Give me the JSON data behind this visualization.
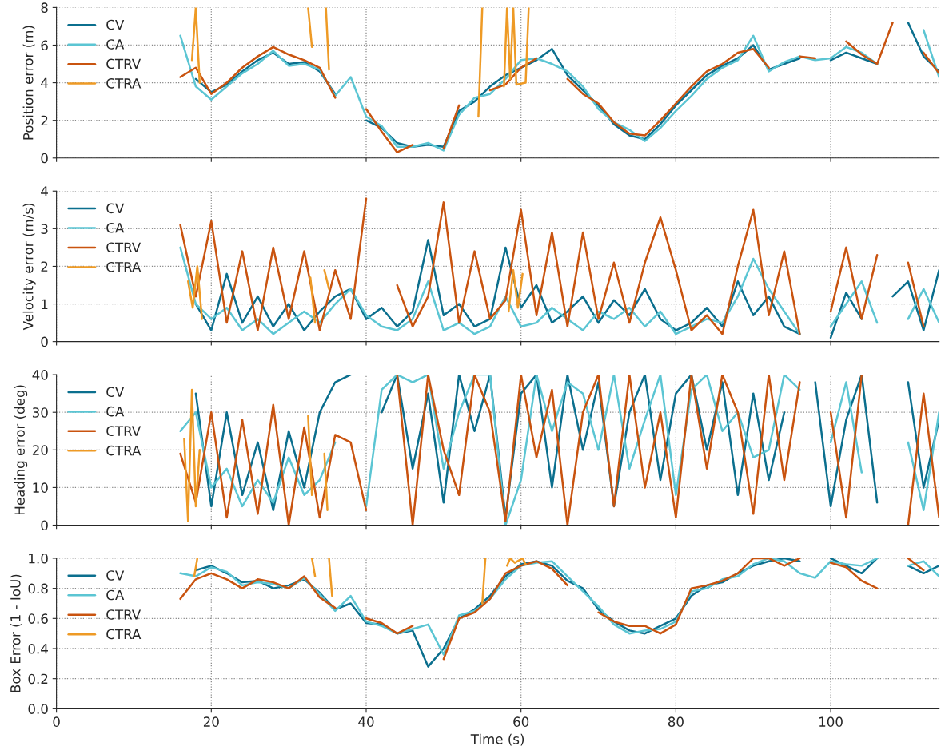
{
  "chart_data": [
    {
      "type": "line",
      "ylabel": "Position error (m)",
      "xlim": [
        0,
        114
      ],
      "xticks": [
        0,
        20,
        40,
        60,
        80,
        100
      ],
      "ylim": [
        0,
        8
      ],
      "yticks": [
        0,
        2,
        4,
        6,
        8
      ],
      "grid": true,
      "legend": "top left",
      "tick_labels": "y",
      "line_style": "solid",
      "x": [
        16,
        18,
        20,
        22,
        24,
        26,
        28,
        30,
        32,
        34,
        36,
        38,
        40,
        42,
        44,
        46,
        48,
        50,
        52,
        54,
        56,
        58,
        60,
        62,
        64,
        66,
        68,
        70,
        72,
        74,
        76,
        78,
        80,
        82,
        84,
        86,
        88,
        90,
        92,
        94,
        96,
        98,
        100,
        102,
        104,
        106,
        108,
        110,
        112,
        114
      ],
      "series": [
        {
          "name": "CV",
          "color": "#0b6f8e",
          "values": [
            null,
            4.2,
            3.5,
            3.9,
            4.6,
            5.2,
            5.6,
            5.0,
            5.1,
            4.6,
            3.4,
            null,
            2.0,
            1.6,
            0.8,
            0.6,
            0.7,
            0.6,
            2.5,
            3.0,
            3.8,
            4.4,
            4.8,
            5.2,
            5.8,
            4.4,
            3.6,
            2.8,
            1.8,
            1.2,
            1.0,
            1.8,
            2.8,
            3.6,
            4.4,
            4.9,
            5.3,
            6.0,
            4.7,
            5.0,
            5.3,
            null,
            5.2,
            5.6,
            5.3,
            5.0,
            null,
            7.2,
            5.4,
            4.6
          ]
        },
        {
          "name": "CA",
          "color": "#5bc5d3",
          "values": [
            6.5,
            3.8,
            3.1,
            3.8,
            4.5,
            5.0,
            5.7,
            4.9,
            5.0,
            4.7,
            3.3,
            4.3,
            2.2,
            1.7,
            0.6,
            0.6,
            0.8,
            0.4,
            2.3,
            3.2,
            3.4,
            4.2,
            5.2,
            5.3,
            5.0,
            4.6,
            3.8,
            2.6,
            1.9,
            1.5,
            0.9,
            1.6,
            2.5,
            3.3,
            4.2,
            4.8,
            5.2,
            6.5,
            4.6,
            5.1,
            5.4,
            5.2,
            5.3,
            5.9,
            5.6,
            5.0,
            null,
            null,
            6.8,
            4.3
          ]
        },
        {
          "name": "CTRV",
          "color": "#c9530f",
          "values": [
            4.3,
            4.8,
            3.4,
            4.0,
            4.8,
            5.4,
            5.9,
            5.5,
            5.2,
            4.8,
            3.2,
            null,
            2.6,
            1.4,
            0.3,
            0.7,
            null,
            0.5,
            2.8,
            null,
            3.6,
            3.9,
            4.8,
            5.3,
            null,
            4.2,
            3.4,
            2.9,
            1.9,
            1.3,
            1.2,
            2.0,
            2.9,
            3.8,
            4.6,
            5.0,
            5.6,
            5.8,
            4.8,
            null,
            5.4,
            5.3,
            null,
            6.2,
            5.5,
            5.0,
            7.2,
            null,
            5.6,
            4.5
          ]
        },
        {
          "name": "CTRA",
          "color": "#ee9a25",
          "x": [
            17.5,
            18,
            18.5,
            19,
            32.5,
            33,
            33.5,
            34.8,
            35.2,
            35.6,
            54.5,
            55,
            55.5,
            57.8,
            58.2,
            58.6,
            59,
            59.4,
            60.6,
            61
          ],
          "values": [
            5.2,
            8,
            4.0,
            null,
            8,
            5.9,
            null,
            8,
            4.7,
            null,
            2.2,
            8,
            null,
            3.8,
            8,
            4.2,
            8,
            3.9,
            4.0,
            8
          ]
        }
      ]
    },
    {
      "type": "line",
      "ylabel": "Velocity error (m/s)",
      "xlim": [
        0,
        114
      ],
      "xticks": [
        0,
        20,
        40,
        60,
        80,
        100
      ],
      "ylim": [
        0,
        4
      ],
      "yticks": [
        0,
        1,
        2,
        3,
        4
      ],
      "grid": true,
      "legend": "top left",
      "tick_labels": "y",
      "line_style": "solid",
      "x": [
        16,
        18,
        20,
        22,
        24,
        26,
        28,
        30,
        32,
        34,
        36,
        38,
        40,
        42,
        44,
        46,
        48,
        50,
        52,
        54,
        56,
        58,
        60,
        62,
        64,
        66,
        68,
        70,
        72,
        74,
        76,
        78,
        80,
        82,
        84,
        86,
        88,
        90,
        92,
        94,
        96,
        98,
        100,
        102,
        104,
        106,
        108,
        110,
        112,
        114
      ],
      "series": [
        {
          "name": "CV",
          "color": "#0b6f8e",
          "values": [
            null,
            1.0,
            0.3,
            1.8,
            0.5,
            1.2,
            0.4,
            1.0,
            0.3,
            0.8,
            1.2,
            1.4,
            0.6,
            0.9,
            0.4,
            0.8,
            2.7,
            0.7,
            1.0,
            0.4,
            0.6,
            2.5,
            0.9,
            1.5,
            0.5,
            0.8,
            1.2,
            0.5,
            1.1,
            0.7,
            1.4,
            0.6,
            0.3,
            0.5,
            0.9,
            0.4,
            1.6,
            0.7,
            1.2,
            0.4,
            0.2,
            null,
            0.1,
            1.3,
            0.6,
            null,
            1.2,
            1.6,
            0.3,
            1.9
          ]
        },
        {
          "name": "CA",
          "color": "#5bc5d3",
          "values": [
            2.5,
            1.0,
            0.6,
            0.9,
            0.3,
            0.6,
            0.2,
            0.5,
            0.8,
            0.5,
            1.0,
            1.4,
            0.7,
            0.4,
            0.3,
            0.6,
            1.6,
            0.3,
            0.5,
            0.2,
            0.4,
            1.2,
            0.4,
            0.5,
            0.9,
            0.6,
            0.3,
            0.8,
            0.6,
            0.9,
            0.4,
            0.8,
            0.2,
            0.4,
            0.6,
            0.5,
            1.2,
            2.2,
            1.4,
            0.8,
            0.2,
            null,
            0.4,
            1.0,
            1.6,
            0.5,
            null,
            0.6,
            1.4,
            0.5
          ]
        },
        {
          "name": "CTRV",
          "color": "#c9530f",
          "values": [
            3.1,
            1.2,
            3.2,
            0.5,
            2.4,
            0.3,
            2.5,
            0.6,
            2.4,
            0.3,
            1.9,
            0.6,
            3.8,
            null,
            1.5,
            0.4,
            1.2,
            3.7,
            0.5,
            2.4,
            0.6,
            1.1,
            3.5,
            0.7,
            2.9,
            0.4,
            2.9,
            0.6,
            2.1,
            0.5,
            2.1,
            3.3,
            1.9,
            0.3,
            0.7,
            0.2,
            2.0,
            3.5,
            0.7,
            2.4,
            0.2,
            null,
            0.8,
            2.5,
            0.6,
            2.3,
            null,
            2.1,
            0.4,
            null
          ]
        },
        {
          "name": "CTRA",
          "color": "#ee9a25",
          "x": [
            17,
            17.6,
            18.2,
            18.8,
            19.2,
            32.8,
            33.4,
            33.8,
            34.6,
            35.2,
            35.6,
            58.4,
            59,
            59.6,
            60.2
          ],
          "values": [
            1.6,
            0.9,
            2.0,
            0.6,
            null,
            1.7,
            0.5,
            null,
            1.9,
            1.4,
            null,
            0.8,
            1.9,
            0.9,
            1.8
          ]
        }
      ]
    },
    {
      "type": "line",
      "ylabel": "Heading error (deg)",
      "xlim": [
        0,
        114
      ],
      "xticks": [
        0,
        20,
        40,
        60,
        80,
        100
      ],
      "ylim": [
        0,
        40
      ],
      "yticks": [
        0,
        10,
        20,
        30,
        40
      ],
      "grid": true,
      "legend": "top left",
      "tick_labels": "y",
      "line_style": "solid",
      "x": [
        16,
        18,
        20,
        22,
        24,
        26,
        28,
        30,
        32,
        34,
        36,
        38,
        40,
        42,
        44,
        46,
        48,
        50,
        52,
        54,
        56,
        58,
        60,
        62,
        64,
        66,
        68,
        70,
        72,
        74,
        76,
        78,
        80,
        82,
        84,
        86,
        88,
        90,
        92,
        94,
        96,
        98,
        100,
        102,
        104,
        106,
        108,
        110,
        112,
        114
      ],
      "series": [
        {
          "name": "CV",
          "color": "#0b6f8e",
          "values": [
            null,
            35,
            5,
            30,
            8,
            22,
            4,
            25,
            10,
            30,
            38,
            40,
            null,
            30,
            40,
            15,
            35,
            6,
            40,
            25,
            40,
            2,
            35,
            40,
            10,
            40,
            20,
            38,
            5,
            30,
            40,
            12,
            35,
            40,
            20,
            38,
            8,
            35,
            12,
            30,
            null,
            38,
            5,
            28,
            40,
            6,
            null,
            38,
            10,
            28
          ]
        },
        {
          "name": "CA",
          "color": "#5bc5d3",
          "values": [
            25,
            30,
            10,
            15,
            5,
            12,
            6,
            18,
            8,
            12,
            22,
            null,
            5,
            36,
            40,
            38,
            40,
            15,
            30,
            40,
            40,
            0,
            12,
            40,
            25,
            38,
            35,
            20,
            40,
            15,
            28,
            40,
            8,
            36,
            40,
            25,
            30,
            18,
            20,
            40,
            36,
            null,
            22,
            38,
            14,
            null,
            null,
            22,
            4,
            30
          ]
        },
        {
          "name": "CTRV",
          "color": "#c9530f",
          "values": [
            19,
            6,
            30,
            2,
            28,
            3,
            32,
            0,
            26,
            2,
            24,
            22,
            4,
            null,
            40,
            0,
            40,
            20,
            8,
            40,
            30,
            1,
            40,
            18,
            36,
            0,
            30,
            40,
            5,
            40,
            10,
            30,
            2,
            40,
            15,
            40,
            30,
            3,
            40,
            12,
            38,
            null,
            30,
            2,
            40,
            null,
            null,
            0,
            35,
            2
          ]
        },
        {
          "name": "CTRA",
          "color": "#ee9a25",
          "x": [
            16.5,
            17,
            17.5,
            18,
            18.5,
            19,
            32.5,
            33,
            33.5,
            34.6,
            35
          ],
          "values": [
            23,
            1,
            36,
            5,
            20,
            null,
            29,
            8,
            null,
            19,
            4
          ]
        }
      ]
    },
    {
      "type": "line",
      "ylabel": "Box Error (1 - IoU)",
      "xlabel": "Time (s)",
      "xlim": [
        0,
        114
      ],
      "xticks": [
        0,
        20,
        40,
        60,
        80,
        100
      ],
      "ylim": [
        0,
        1
      ],
      "yticks": [
        {
          "value": 0,
          "label": "0.0"
        },
        {
          "value": 0.2,
          "label": "0.2"
        },
        {
          "value": 0.4,
          "label": "0.4"
        },
        {
          "value": 0.6,
          "label": "0.6"
        },
        {
          "value": 0.8,
          "label": "0.8"
        },
        {
          "value": 1,
          "label": "1.0"
        }
      ],
      "grid": true,
      "legend": "top left",
      "line_style": "solid",
      "x": [
        16,
        18,
        20,
        22,
        24,
        26,
        28,
        30,
        32,
        34,
        36,
        38,
        40,
        42,
        44,
        46,
        48,
        50,
        52,
        54,
        56,
        58,
        60,
        62,
        64,
        66,
        68,
        70,
        72,
        74,
        76,
        78,
        80,
        82,
        84,
        86,
        88,
        90,
        92,
        94,
        96,
        98,
        100,
        102,
        104,
        106,
        108,
        110,
        112,
        114
      ],
      "series": [
        {
          "name": "CV",
          "color": "#0b6f8e",
          "values": [
            null,
            0.92,
            0.95,
            0.9,
            0.84,
            0.85,
            0.8,
            0.82,
            0.86,
            0.77,
            0.66,
            0.7,
            0.57,
            0.56,
            0.5,
            0.52,
            0.28,
            0.4,
            0.6,
            0.66,
            0.75,
            0.88,
            0.96,
            0.98,
            0.95,
            0.85,
            0.8,
            0.66,
            0.58,
            0.52,
            0.5,
            0.55,
            0.6,
            0.75,
            0.82,
            0.84,
            0.9,
            0.95,
            0.98,
            1.0,
            0.98,
            null,
            1.0,
            0.95,
            0.9,
            1.0,
            null,
            0.95,
            0.9,
            0.95
          ]
        },
        {
          "name": "CA",
          "color": "#5bc5d3",
          "values": [
            0.9,
            0.88,
            0.94,
            0.91,
            0.82,
            0.84,
            0.83,
            0.8,
            0.87,
            0.76,
            0.65,
            0.75,
            0.58,
            0.55,
            0.5,
            0.53,
            0.56,
            0.36,
            0.62,
            0.65,
            0.73,
            0.86,
            0.95,
            0.97,
            0.98,
            0.88,
            0.78,
            0.68,
            0.56,
            0.5,
            0.52,
            0.53,
            0.58,
            0.78,
            0.8,
            0.86,
            0.88,
            0.96,
            1.0,
            0.98,
            0.9,
            0.87,
            0.98,
            0.96,
            0.95,
            1.0,
            null,
            0.95,
            0.98,
            0.88
          ]
        },
        {
          "name": "CTRV",
          "color": "#c9530f",
          "values": [
            0.73,
            0.86,
            0.9,
            0.86,
            0.8,
            0.86,
            0.84,
            0.8,
            0.88,
            0.74,
            0.67,
            null,
            0.6,
            0.57,
            0.5,
            0.55,
            null,
            0.33,
            0.6,
            0.64,
            0.73,
            0.9,
            0.95,
            0.98,
            0.93,
            0.82,
            null,
            0.64,
            0.58,
            0.55,
            0.55,
            0.5,
            0.56,
            0.8,
            0.82,
            0.85,
            0.9,
            1.0,
            1.0,
            0.95,
            1.0,
            null,
            0.97,
            0.94,
            0.85,
            0.8,
            null,
            1.0,
            0.92,
            null
          ]
        },
        {
          "name": "CTRA",
          "color": "#ee9a25",
          "x": [
            17.8,
            18.2,
            32.6,
            33,
            33.4,
            34.8,
            35.2,
            35.6,
            54.6,
            55,
            55.4,
            57.8,
            58.2,
            58.6,
            59.2,
            60.2,
            60.6
          ],
          "values": [
            0.88,
            1.0,
            null,
            1.0,
            0.88,
            null,
            1.0,
            0.75,
            null,
            0.7,
            1.0,
            null,
            0.95,
            1.0,
            0.97,
            1.0,
            0.96
          ]
        }
      ]
    }
  ]
}
